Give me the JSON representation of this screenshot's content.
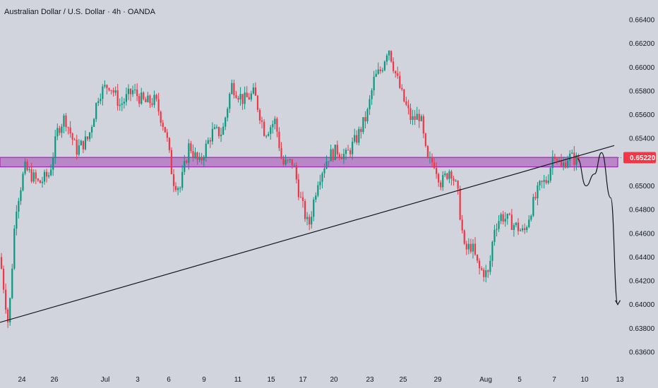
{
  "chart_data": {
    "type": "candlestick",
    "title": "Australian Dollar / U.S. Dollar · 4h · OANDA",
    "ylim": [
      0.6356,
      0.6652
    ],
    "y_ticks": [
      "0.66400",
      "0.66200",
      "0.66000",
      "0.65800",
      "0.65600",
      "0.65400",
      "0.65220",
      "0.65000",
      "0.64800",
      "0.64600",
      "0.64400",
      "0.64200",
      "0.64000",
      "0.63800",
      "0.63600"
    ],
    "x_ticks": [
      "24",
      "26",
      "Jul",
      "3",
      "6",
      "9",
      "11",
      "15",
      "17",
      "20",
      "23",
      "25",
      "29",
      "Aug",
      "5",
      "7",
      "10",
      "13"
    ],
    "current_price": {
      "value": 0.6522,
      "label": "0.65220",
      "color": "#f23645"
    },
    "colors": {
      "up": "#089981",
      "down": "#f23645",
      "zone": "#9c27b0",
      "background": "#d1d4dc"
    },
    "zone": {
      "from": 0.6516,
      "to": 0.6524
    },
    "trendline": {
      "from": [
        0,
        0.6385
      ],
      "to": [
        870,
        0.6534
      ]
    },
    "projection": [
      [
        818,
        0.6523
      ],
      [
        830,
        0.65
      ],
      [
        842,
        0.651
      ],
      [
        852,
        0.6528
      ],
      [
        865,
        0.649
      ],
      [
        875,
        0.64
      ]
    ],
    "swing_points": [
      [
        0,
        0.644
      ],
      [
        12,
        0.6382
      ],
      [
        22,
        0.648
      ],
      [
        35,
        0.6515
      ],
      [
        55,
        0.6502
      ],
      [
        70,
        0.651
      ],
      [
        82,
        0.6548
      ],
      [
        92,
        0.6558
      ],
      [
        108,
        0.653
      ],
      [
        125,
        0.654
      ],
      [
        140,
        0.6578
      ],
      [
        155,
        0.6586
      ],
      [
        170,
        0.6568
      ],
      [
        188,
        0.658
      ],
      [
        205,
        0.657
      ],
      [
        220,
        0.6572
      ],
      [
        235,
        0.6545
      ],
      [
        245,
        0.6505
      ],
      [
        255,
        0.6498
      ],
      [
        268,
        0.6535
      ],
      [
        282,
        0.6518
      ],
      [
        300,
        0.6545
      ],
      [
        315,
        0.6545
      ],
      [
        328,
        0.6585
      ],
      [
        345,
        0.6572
      ],
      [
        360,
        0.6578
      ],
      [
        375,
        0.6545
      ],
      [
        390,
        0.6555
      ],
      [
        400,
        0.6518
      ],
      [
        415,
        0.652
      ],
      [
        425,
        0.649
      ],
      [
        437,
        0.6465
      ],
      [
        450,
        0.6505
      ],
      [
        465,
        0.6525
      ],
      [
        478,
        0.653
      ],
      [
        490,
        0.6525
      ],
      [
        505,
        0.654
      ],
      [
        520,
        0.656
      ],
      [
        530,
        0.659
      ],
      [
        540,
        0.6598
      ],
      [
        550,
        0.6618
      ],
      [
        560,
        0.6595
      ],
      [
        570,
        0.6575
      ],
      [
        583,
        0.6555
      ],
      [
        595,
        0.656
      ],
      [
        605,
        0.652
      ],
      [
        615,
        0.652
      ],
      [
        625,
        0.6502
      ],
      [
        638,
        0.6515
      ],
      [
        648,
        0.6495
      ],
      [
        658,
        0.6445
      ],
      [
        668,
        0.645
      ],
      [
        678,
        0.643
      ],
      [
        692,
        0.6425
      ],
      [
        700,
        0.6465
      ],
      [
        710,
        0.6475
      ],
      [
        722,
        0.647
      ],
      [
        733,
        0.6465
      ],
      [
        742,
        0.646
      ],
      [
        752,
        0.648
      ],
      [
        765,
        0.65
      ],
      [
        775,
        0.6505
      ],
      [
        785,
        0.653
      ],
      [
        795,
        0.6515
      ],
      [
        805,
        0.6525
      ],
      [
        815,
        0.6522
      ],
      [
        820,
        0.6522
      ]
    ]
  }
}
